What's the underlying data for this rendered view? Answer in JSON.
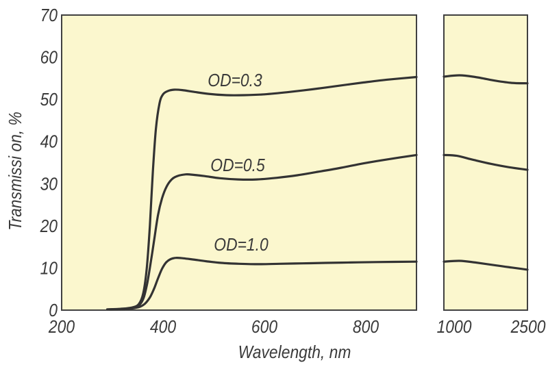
{
  "colors": {
    "page_bg": "#ffffff",
    "plot_bg": "#fbf7ce",
    "frame": "#404040",
    "curve": "#333333",
    "text": "#3a3a3a"
  },
  "chart_data": {
    "type": "line",
    "title": "",
    "xlabel": "Wavelength, nm",
    "ylabel": "Transmissi on, %",
    "ylim": [
      0,
      70
    ],
    "y_ticks": [
      0,
      10,
      20,
      30,
      40,
      50,
      60,
      70
    ],
    "grid": false,
    "legend": "inline-curve-labels",
    "broken_x_axis": true,
    "panels": [
      {
        "name": "main",
        "xlim": [
          200,
          900
        ],
        "x_ticks": [
          200,
          400,
          600,
          800
        ]
      },
      {
        "name": "right",
        "xlim": [
          900,
          2500
        ],
        "x_ticks": [
          1000,
          2500
        ]
      }
    ],
    "series": [
      {
        "label": "OD=0.3",
        "panel1": [
          [
            290,
            0.2
          ],
          [
            315,
            0.3
          ],
          [
            338,
            0.6
          ],
          [
            352,
            1.4
          ],
          [
            361,
            4
          ],
          [
            368,
            10
          ],
          [
            374,
            20
          ],
          [
            380,
            33
          ],
          [
            386,
            43
          ],
          [
            393,
            49
          ],
          [
            400,
            51.2
          ],
          [
            410,
            52.0
          ],
          [
            422,
            52.3
          ],
          [
            438,
            52.2
          ],
          [
            460,
            51.8
          ],
          [
            490,
            51.3
          ],
          [
            525,
            51.0
          ],
          [
            560,
            51.0
          ],
          [
            600,
            51.2
          ],
          [
            645,
            51.7
          ],
          [
            695,
            52.4
          ],
          [
            745,
            53.2
          ],
          [
            795,
            54.0
          ],
          [
            845,
            54.7
          ],
          [
            900,
            55.3
          ]
        ],
        "panel2": [
          [
            900,
            55.4
          ],
          [
            1200,
            55.7
          ],
          [
            1500,
            55.3
          ],
          [
            1900,
            54.4
          ],
          [
            2200,
            53.9
          ],
          [
            2500,
            53.8
          ]
        ]
      },
      {
        "label": "OD=0.5",
        "panel1": [
          [
            290,
            0.15
          ],
          [
            320,
            0.3
          ],
          [
            342,
            0.6
          ],
          [
            354,
            1.3
          ],
          [
            362,
            3
          ],
          [
            369,
            6.5
          ],
          [
            376,
            11.5
          ],
          [
            383,
            17
          ],
          [
            390,
            22.5
          ],
          [
            398,
            26.5
          ],
          [
            407,
            29.3
          ],
          [
            417,
            31.0
          ],
          [
            428,
            31.8
          ],
          [
            445,
            32.2
          ],
          [
            460,
            32.1
          ],
          [
            482,
            31.8
          ],
          [
            512,
            31.3
          ],
          [
            548,
            31.0
          ],
          [
            585,
            31.0
          ],
          [
            625,
            31.4
          ],
          [
            665,
            32.0
          ],
          [
            705,
            32.8
          ],
          [
            748,
            33.7
          ],
          [
            795,
            34.8
          ],
          [
            845,
            35.8
          ],
          [
            900,
            36.8
          ]
        ],
        "panel2": [
          [
            900,
            36.8
          ],
          [
            1150,
            36.6
          ],
          [
            1450,
            35.7
          ],
          [
            1800,
            34.7
          ],
          [
            2150,
            33.9
          ],
          [
            2500,
            33.3
          ]
        ]
      },
      {
        "label": "OD=1.0",
        "panel1": [
          [
            295,
            0.1
          ],
          [
            330,
            0.3
          ],
          [
            352,
            0.7
          ],
          [
            364,
            1.5
          ],
          [
            374,
            3
          ],
          [
            382,
            5
          ],
          [
            390,
            7.5
          ],
          [
            398,
            9.8
          ],
          [
            406,
            11.3
          ],
          [
            415,
            12.1
          ],
          [
            425,
            12.4
          ],
          [
            440,
            12.3
          ],
          [
            460,
            12.0
          ],
          [
            485,
            11.6
          ],
          [
            515,
            11.2
          ],
          [
            550,
            11.0
          ],
          [
            590,
            10.9
          ],
          [
            630,
            11.0
          ],
          [
            675,
            11.1
          ],
          [
            720,
            11.2
          ],
          [
            770,
            11.3
          ],
          [
            820,
            11.4
          ],
          [
            900,
            11.5
          ]
        ],
        "panel2": [
          [
            900,
            11.5
          ],
          [
            1200,
            11.7
          ],
          [
            1500,
            11.3
          ],
          [
            1900,
            10.6
          ],
          [
            2200,
            10.1
          ],
          [
            2500,
            9.6
          ]
        ]
      }
    ]
  }
}
